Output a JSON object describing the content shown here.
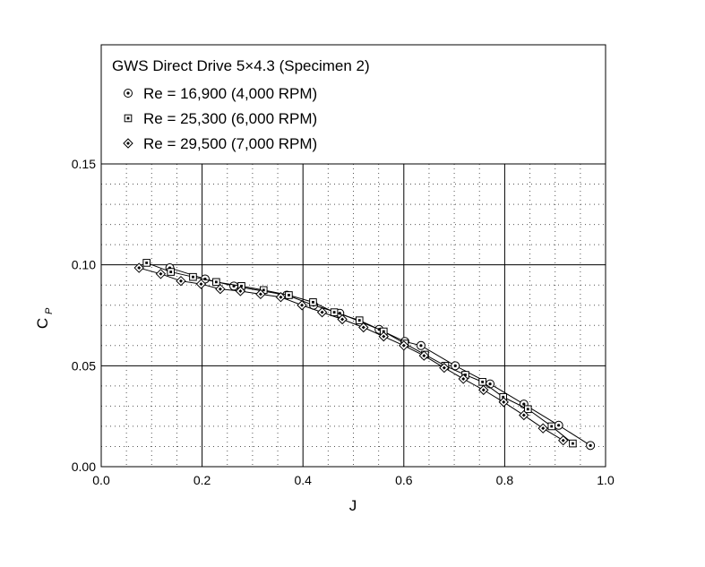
{
  "chart_data": {
    "type": "line",
    "title": "GWS Direct Drive 5×4.3 (Specimen 2)",
    "xlabel": "J",
    "ylabel": "C",
    "ylabel_subscript": "P",
    "xlim": [
      0.0,
      1.0
    ],
    "ylim": [
      0.0,
      0.15
    ],
    "x_ticks": [
      0.0,
      0.2,
      0.4,
      0.6,
      0.8,
      1.0
    ],
    "x_tick_labels": [
      "0.0",
      "0.2",
      "0.4",
      "0.6",
      "0.8",
      "1.0"
    ],
    "y_ticks": [
      0.0,
      0.05,
      0.1,
      0.15
    ],
    "y_tick_labels": [
      "0.00",
      "0.05",
      "0.10",
      "0.15"
    ],
    "grid": true,
    "minor_grid": true,
    "legend_position": "top",
    "series": [
      {
        "name": "Re = 16,900 (4,000 RPM)",
        "marker": "circle-dot",
        "x": [
          0.136,
          0.206,
          0.263,
          0.368,
          0.421,
          0.473,
          0.551,
          0.602,
          0.634,
          0.702,
          0.771,
          0.838,
          0.907,
          0.97
        ],
        "y": [
          0.0985,
          0.093,
          0.0895,
          0.085,
          0.08,
          0.076,
          0.068,
          0.062,
          0.06,
          0.05,
          0.041,
          0.031,
          0.0205,
          0.0105
        ]
      },
      {
        "name": "Re = 25,300 (6,000 RPM)",
        "marker": "square-dot",
        "x": [
          0.09,
          0.138,
          0.182,
          0.228,
          0.278,
          0.322,
          0.372,
          0.42,
          0.462,
          0.512,
          0.56,
          0.602,
          0.642,
          0.682,
          0.722,
          0.756,
          0.797,
          0.846,
          0.893,
          0.935
        ],
        "y": [
          0.101,
          0.0965,
          0.094,
          0.0915,
          0.0895,
          0.0875,
          0.085,
          0.0815,
          0.0765,
          0.0725,
          0.067,
          0.061,
          0.0555,
          0.05,
          0.0455,
          0.042,
          0.0345,
          0.0285,
          0.02,
          0.0115
        ]
      },
      {
        "name": "Re = 29,500 (7,000 RPM)",
        "marker": "diamond-dot",
        "x": [
          0.075,
          0.118,
          0.158,
          0.198,
          0.236,
          0.276,
          0.316,
          0.356,
          0.398,
          0.438,
          0.478,
          0.52,
          0.56,
          0.6,
          0.64,
          0.68,
          0.718,
          0.758,
          0.798,
          0.838,
          0.876,
          0.916
        ],
        "y": [
          0.0985,
          0.0955,
          0.092,
          0.0905,
          0.088,
          0.087,
          0.0855,
          0.084,
          0.08,
          0.0765,
          0.073,
          0.069,
          0.0645,
          0.06,
          0.055,
          0.049,
          0.0435,
          0.038,
          0.032,
          0.0255,
          0.019,
          0.013
        ]
      }
    ]
  }
}
